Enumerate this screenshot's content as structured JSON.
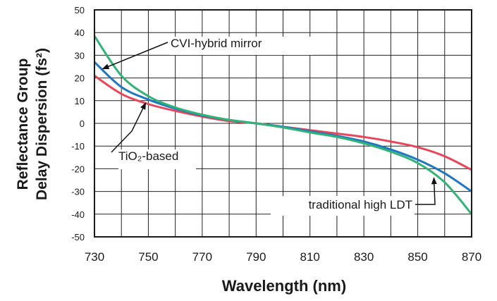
{
  "chart_data": {
    "type": "line",
    "title": "",
    "xlabel": "Wavelength (nm)",
    "ylabel_line1": "Reflectance Group",
    "ylabel_line2": "Delay Dispersion (fs²)",
    "xlim": [
      730,
      870
    ],
    "ylim": [
      -50,
      50
    ],
    "x_ticks": [
      730,
      750,
      770,
      790,
      810,
      830,
      850,
      870
    ],
    "y_ticks": [
      50,
      40,
      30,
      20,
      10,
      0,
      -10,
      -20,
      -30,
      -40,
      -50
    ],
    "grid": true,
    "colors": {
      "blue": "#1f77c0",
      "red": "#e8465a",
      "green": "#33b277"
    },
    "series": [
      {
        "name": "CVI-hybrid mirror",
        "color": "#1f77c0",
        "x": [
          730,
          740,
          750,
          760,
          770,
          780,
          790,
          800,
          810,
          820,
          830,
          840,
          850,
          860,
          870
        ],
        "y": [
          27,
          16,
          10.5,
          6.5,
          3.5,
          1.5,
          0,
          -1.5,
          -3.5,
          -5.5,
          -8,
          -11.5,
          -16,
          -22,
          -30
        ]
      },
      {
        "name": "TiO₂-based",
        "color": "#e8465a",
        "x": [
          730,
          740,
          750,
          760,
          770,
          780,
          790,
          800,
          810,
          820,
          830,
          840,
          850,
          860,
          870
        ],
        "y": [
          21,
          13,
          8.5,
          5.5,
          3,
          1,
          0,
          -1.5,
          -3,
          -4.5,
          -6,
          -8,
          -10.5,
          -14.5,
          -20.5
        ]
      },
      {
        "name": "traditional high LDT",
        "color": "#33b277",
        "x": [
          730,
          740,
          750,
          760,
          770,
          780,
          790,
          800,
          810,
          820,
          830,
          840,
          850,
          860,
          870
        ],
        "y": [
          38.5,
          21,
          12,
          7,
          3.8,
          1.5,
          0,
          -1.8,
          -4,
          -6,
          -8.8,
          -12.5,
          -17.5,
          -26,
          -40
        ]
      }
    ],
    "annotations": [
      {
        "text": "CVI-hybrid mirror",
        "points_to": "traditional high LDT",
        "x": 733,
        "y": 24
      },
      {
        "text": "TiO₂-based",
        "points_to": "TiO₂-based",
        "x": 749,
        "y": 9
      },
      {
        "text": "traditional high LDT",
        "points_to": "traditional high LDT",
        "x": 856,
        "y": -24
      }
    ]
  }
}
